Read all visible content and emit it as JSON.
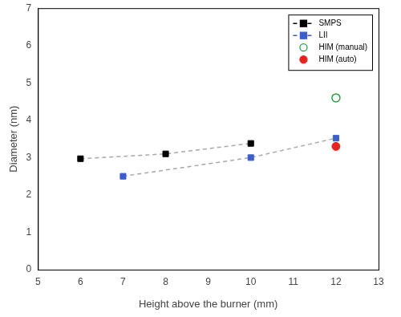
{
  "chart_data": {
    "type": "line",
    "x_label": "Height above the burner (mm)",
    "y_label": "Diameter (nm)",
    "xlim": [
      5,
      13
    ],
    "xticks": [
      5,
      6,
      7,
      8,
      9,
      10,
      11,
      12,
      13
    ],
    "ylim": [
      0,
      7
    ],
    "yticks": [
      0,
      1,
      2,
      3,
      4,
      5,
      6,
      7
    ],
    "grid": false,
    "legend": "top-right",
    "series": [
      {
        "name": "SMPS",
        "color": "#000000",
        "marker": "square",
        "line_style": "dashed",
        "x": [
          6,
          8,
          10
        ],
        "values": [
          2.97,
          3.1,
          3.38
        ]
      },
      {
        "name": "LII",
        "color": "#3a5fcd",
        "marker": "square",
        "line_style": "dashed",
        "x": [
          7,
          10,
          12
        ],
        "values": [
          2.5,
          3.0,
          3.52
        ]
      },
      {
        "name": "HIM (manual)",
        "color": "#2e9e3e",
        "marker": "open_circle",
        "x": [
          12
        ],
        "values": [
          4.6
        ]
      },
      {
        "name": "HIM (auto)",
        "color": "#e8231f",
        "marker": "circle",
        "x": [
          12
        ],
        "values": [
          3.3
        ]
      }
    ]
  }
}
